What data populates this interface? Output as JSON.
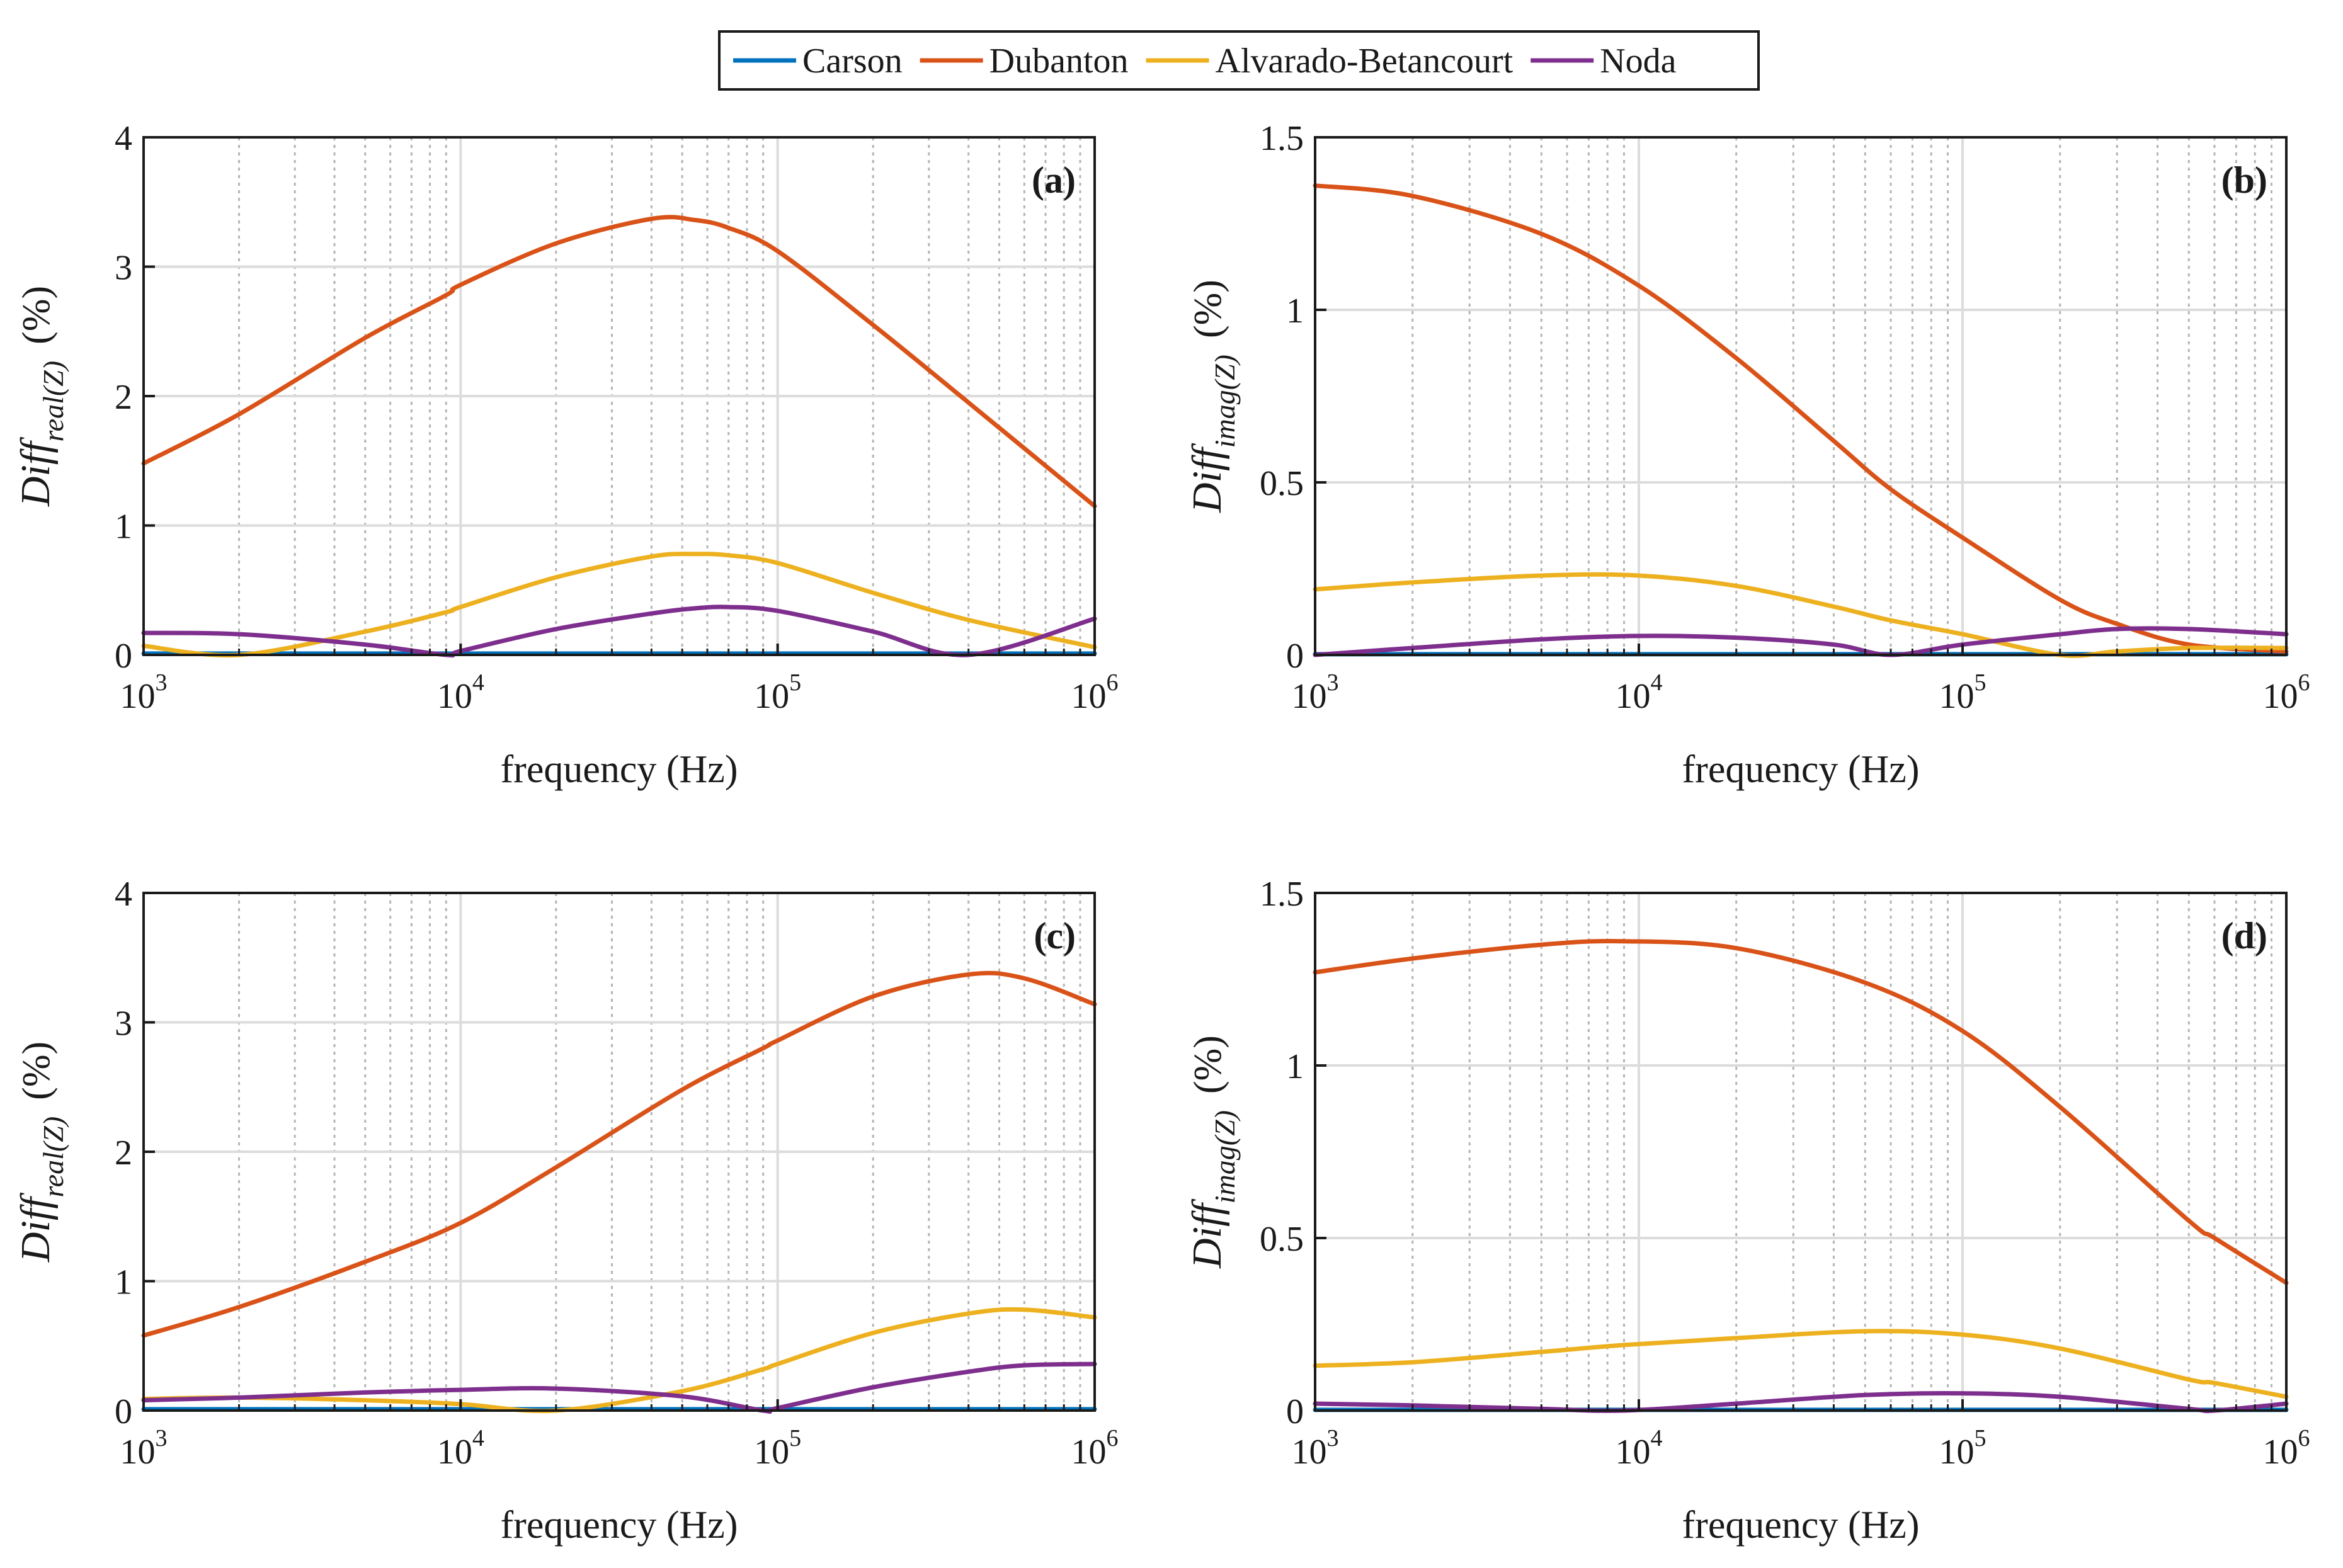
{
  "legend": [
    {
      "name": "Carson",
      "color": "#0072BD"
    },
    {
      "name": "Dubanton",
      "color": "#D95319"
    },
    {
      "name": "Alvarado-Betancourt",
      "color": "#EDB120"
    },
    {
      "name": "Noda",
      "color": "#7E2F8E"
    }
  ],
  "chart_data": [
    {
      "type": "line",
      "panel_label": "(a)",
      "xlabel": "frequency (Hz)",
      "ylabel_main": "Diff",
      "ylabel_sub": "real(Z)",
      "ylabel_unit": "(%)",
      "xscale": "log",
      "xlim": [
        1000,
        1000000
      ],
      "ylim": [
        0,
        4
      ],
      "yticks": [
        "0",
        "1",
        "2",
        "3",
        "4"
      ],
      "xticks": [
        {
          "base": "10",
          "exp": "3"
        },
        {
          "base": "10",
          "exp": "4"
        },
        {
          "base": "10",
          "exp": "5"
        },
        {
          "base": "10",
          "exp": "6"
        }
      ],
      "grid": true,
      "x": [
        1000,
        2000,
        5000,
        9000,
        10000,
        20000,
        40000,
        55000,
        70000,
        100000,
        200000,
        400000,
        1000000
      ],
      "series": [
        {
          "name": "Carson",
          "values": [
            0.01,
            0.01,
            0.01,
            0.01,
            0.01,
            0.01,
            0.01,
            0.01,
            0.01,
            0.01,
            0.01,
            0.01,
            0.01
          ]
        },
        {
          "name": "Dubanton",
          "values": [
            1.48,
            1.86,
            2.45,
            2.78,
            2.86,
            3.18,
            3.37,
            3.36,
            3.3,
            3.12,
            2.55,
            1.95,
            1.15
          ]
        },
        {
          "name": "Alvarado-Betancourt",
          "values": [
            0.07,
            0.0,
            0.18,
            0.33,
            0.37,
            0.6,
            0.76,
            0.78,
            0.77,
            0.71,
            0.48,
            0.27,
            0.06
          ]
        },
        {
          "name": "Noda",
          "values": [
            0.17,
            0.16,
            0.08,
            0.0,
            0.03,
            0.2,
            0.32,
            0.36,
            0.37,
            0.34,
            0.18,
            0.0,
            0.28
          ]
        }
      ]
    },
    {
      "type": "line",
      "panel_label": "(b)",
      "xlabel": "frequency (Hz)",
      "ylabel_main": "Diff",
      "ylabel_sub": "imag(Z)",
      "ylabel_unit": "(%)",
      "xscale": "log",
      "xlim": [
        1000,
        1000000
      ],
      "ylim": [
        0,
        1.5
      ],
      "yticks": [
        "0",
        "0.5",
        "1",
        "1.5"
      ],
      "xticks": [
        {
          "base": "10",
          "exp": "3"
        },
        {
          "base": "10",
          "exp": "4"
        },
        {
          "base": "10",
          "exp": "5"
        },
        {
          "base": "10",
          "exp": "6"
        }
      ],
      "grid": true,
      "x": [
        1000,
        2000,
        5000,
        10000,
        20000,
        40000,
        60000,
        100000,
        200000,
        300000,
        500000,
        1000000
      ],
      "series": [
        {
          "name": "Carson",
          "values": [
            0.002,
            0.002,
            0.002,
            0.002,
            0.002,
            0.002,
            0.002,
            0.002,
            0.002,
            0.002,
            0.002,
            0.002
          ]
        },
        {
          "name": "Dubanton",
          "values": [
            1.36,
            1.33,
            1.22,
            1.07,
            0.86,
            0.62,
            0.48,
            0.34,
            0.16,
            0.09,
            0.03,
            0.01
          ]
        },
        {
          "name": "Alvarado-Betancourt",
          "values": [
            0.19,
            0.21,
            0.23,
            0.23,
            0.2,
            0.14,
            0.1,
            0.06,
            0.0,
            0.01,
            0.02,
            0.02
          ]
        },
        {
          "name": "Noda",
          "values": [
            0.0,
            0.02,
            0.045,
            0.055,
            0.05,
            0.03,
            0.0,
            0.03,
            0.06,
            0.075,
            0.075,
            0.06
          ]
        }
      ]
    },
    {
      "type": "line",
      "panel_label": "(c)",
      "xlabel": "frequency (Hz)",
      "ylabel_main": "Diff",
      "ylabel_sub": "real(Z)",
      "ylabel_unit": "(%)",
      "xscale": "log",
      "xlim": [
        1000,
        1000000
      ],
      "ylim": [
        0,
        4
      ],
      "yticks": [
        "0",
        "1",
        "2",
        "3",
        "4"
      ],
      "xticks": [
        {
          "base": "10",
          "exp": "3"
        },
        {
          "base": "10",
          "exp": "4"
        },
        {
          "base": "10",
          "exp": "5"
        },
        {
          "base": "10",
          "exp": "6"
        }
      ],
      "grid": true,
      "x": [
        1000,
        2000,
        5000,
        10000,
        20000,
        50000,
        90000,
        100000,
        200000,
        400000,
        600000,
        1000000
      ],
      "series": [
        {
          "name": "Carson",
          "values": [
            0.01,
            0.01,
            0.01,
            0.01,
            0.01,
            0.01,
            0.01,
            0.01,
            0.01,
            0.01,
            0.01,
            0.01
          ]
        },
        {
          "name": "Dubanton",
          "values": [
            0.58,
            0.8,
            1.15,
            1.45,
            1.88,
            2.48,
            2.8,
            2.86,
            3.2,
            3.37,
            3.34,
            3.14
          ]
        },
        {
          "name": "Alvarado-Betancourt",
          "values": [
            0.09,
            0.1,
            0.08,
            0.05,
            0.0,
            0.15,
            0.32,
            0.36,
            0.6,
            0.75,
            0.78,
            0.72
          ]
        },
        {
          "name": "Noda",
          "values": [
            0.08,
            0.1,
            0.14,
            0.16,
            0.17,
            0.11,
            0.0,
            0.02,
            0.18,
            0.3,
            0.35,
            0.36
          ]
        }
      ]
    },
    {
      "type": "line",
      "panel_label": "(d)",
      "xlabel": "frequency (Hz)",
      "ylabel_main": "Diff",
      "ylabel_sub": "imag(Z)",
      "ylabel_unit": "(%)",
      "xscale": "log",
      "xlim": [
        1000,
        1000000
      ],
      "ylim": [
        0,
        1.5
      ],
      "yticks": [
        "0",
        "0.5",
        "1",
        "1.5"
      ],
      "xticks": [
        {
          "base": "10",
          "exp": "3"
        },
        {
          "base": "10",
          "exp": "4"
        },
        {
          "base": "10",
          "exp": "5"
        },
        {
          "base": "10",
          "exp": "6"
        }
      ],
      "grid": true,
      "x": [
        1000,
        2000,
        5000,
        9000,
        20000,
        50000,
        100000,
        200000,
        500000,
        600000,
        1000000
      ],
      "series": [
        {
          "name": "Carson",
          "values": [
            0.002,
            0.002,
            0.002,
            0.002,
            0.002,
            0.002,
            0.002,
            0.002,
            0.002,
            0.002,
            0.002
          ]
        },
        {
          "name": "Dubanton",
          "values": [
            1.27,
            1.31,
            1.35,
            1.36,
            1.34,
            1.24,
            1.1,
            0.88,
            0.55,
            0.5,
            0.37
          ]
        },
        {
          "name": "Alvarado-Betancourt",
          "values": [
            0.13,
            0.14,
            0.17,
            0.19,
            0.21,
            0.23,
            0.22,
            0.18,
            0.09,
            0.08,
            0.04
          ]
        },
        {
          "name": "Noda",
          "values": [
            0.02,
            0.015,
            0.005,
            0.0,
            0.02,
            0.045,
            0.05,
            0.04,
            0.005,
            0.0,
            0.02
          ]
        }
      ]
    }
  ]
}
